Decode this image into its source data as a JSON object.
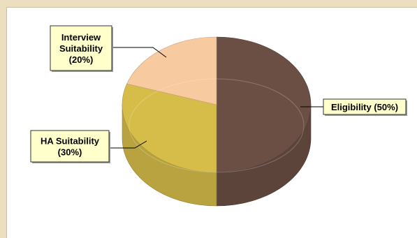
{
  "chart_data": {
    "type": "pie",
    "style": "3d",
    "title": "",
    "slices": [
      {
        "label": "Eligibility",
        "value": 50,
        "display": "Eligibility (50%)",
        "color": "#6b4f45"
      },
      {
        "label": "HA Suitability",
        "value": 30,
        "display": "HA Suitability (30%)",
        "color": "#d6bd4a"
      },
      {
        "label": "Interview Suitability",
        "value": 20,
        "display": "Interview Suitability (20%)",
        "color": "#f8caa0"
      }
    ],
    "labels": {
      "eligibility": [
        "Eligibility (50%)"
      ],
      "ha": [
        "HA Suitability",
        "(30%)"
      ],
      "interview": [
        "Interview",
        "Suitability",
        "(20%)"
      ]
    },
    "label_box_color": "#ffffcc"
  }
}
